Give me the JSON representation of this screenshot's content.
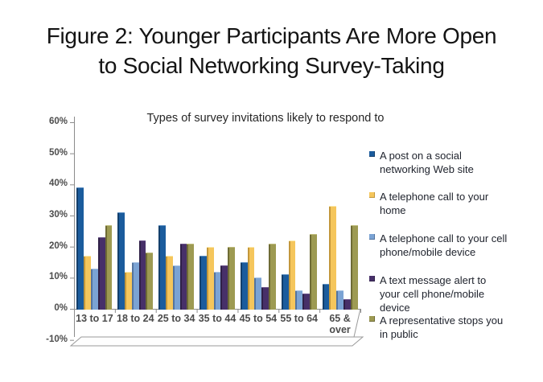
{
  "figure": {
    "title_line1": "Figure 2: Younger Participants Are More Open",
    "title_line2": "to Social Networking Survey-Taking"
  },
  "chart_data": {
    "type": "bar",
    "title": "Types of survey invitations likely to respond to",
    "categories": [
      "13 to 17",
      "18 to 24",
      "25 to 34",
      "35 to 44",
      "45 to 54",
      "55 to 64",
      "65 & over"
    ],
    "series": [
      {
        "name": "A post on a social networking Web site",
        "color": "#1B5C9D",
        "side": "#133F6C",
        "top": "#5E90C2",
        "values": [
          39,
          31,
          27,
          17,
          15,
          11,
          8
        ]
      },
      {
        "name": "A telephone call to your home",
        "color": "#F5C65C",
        "side": "#C3973B",
        "top": "#FBE9AC",
        "values": [
          17,
          12,
          17,
          20,
          20,
          22,
          33
        ]
      },
      {
        "name": "A telephone call to your cell phone/mobile device",
        "color": "#7BA3D4",
        "side": "#54749E",
        "top": "#A9C3E3",
        "values": [
          13,
          15,
          14,
          12,
          10,
          6,
          6
        ]
      },
      {
        "name": "A text message alert to your cell phone/mobile device",
        "color": "#473069",
        "side": "#2F2047",
        "top": "#6C548B",
        "values": [
          23,
          22,
          21,
          14,
          7,
          5,
          3
        ]
      },
      {
        "name": "A representative stops you in public",
        "color": "#9D9A52",
        "side": "#6E6B35",
        "top": "#BFBC7D",
        "values": [
          27,
          18,
          21,
          20,
          21,
          24,
          27
        ]
      }
    ],
    "y_tick_labels": [
      "60%",
      "50%",
      "40%",
      "30%",
      "20%",
      "10%",
      "0%",
      "-10%"
    ],
    "y_tick_values": [
      60,
      50,
      40,
      30,
      20,
      10,
      0,
      -10
    ],
    "ylim": [
      -10,
      60
    ],
    "grid": false,
    "legend_position": "right",
    "legend_items": [
      {
        "series": 0,
        "lines": [
          "A post on a social",
          "networking Web site"
        ]
      },
      {
        "series": 1,
        "lines": [
          "A telephone call to your",
          "home"
        ]
      },
      {
        "series": 2,
        "lines": [
          "A telephone call to your cell",
          "phone/mobile device"
        ]
      },
      {
        "series": 3,
        "lines": [
          "A text message alert to",
          "your cell phone/mobile",
          "device"
        ]
      },
      {
        "series": 4,
        "lines": [
          "A representative stops you",
          "in public"
        ]
      }
    ]
  }
}
